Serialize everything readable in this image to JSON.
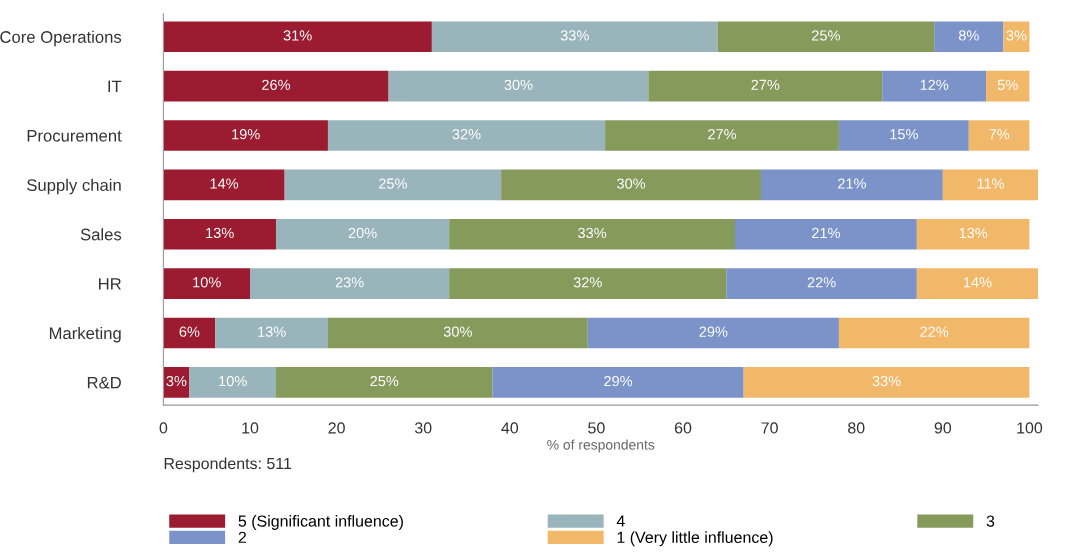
{
  "chart_data": {
    "type": "bar",
    "orientation": "horizontal",
    "stacked": true,
    "categories": [
      "Core Operations",
      "IT",
      "Procurement",
      "Supply chain",
      "Sales",
      "HR",
      "Marketing",
      "R&D"
    ],
    "series": [
      {
        "name": "5 (Significant influence)",
        "color": "#9b1c31",
        "values": [
          31,
          26,
          19,
          14,
          13,
          10,
          6,
          3
        ],
        "value_labels": [
          "31%",
          "26%",
          "19%",
          "14%",
          "13%",
          "10%",
          "6%",
          "3%"
        ]
      },
      {
        "name": "4",
        "color": "#9ab4bc",
        "values": [
          33,
          30,
          32,
          25,
          20,
          23,
          13,
          10
        ],
        "value_labels": [
          "33%",
          "30%",
          "32%",
          "25%",
          "20%",
          "23%",
          "13%",
          "10%"
        ]
      },
      {
        "name": "3",
        "color": "#869a5c",
        "values": [
          25,
          27,
          27,
          30,
          33,
          32,
          30,
          25
        ],
        "value_labels": [
          "25%",
          "27%",
          "27%",
          "30%",
          "33%",
          "32%",
          "30%",
          "25%"
        ]
      },
      {
        "name": "2",
        "color": "#7b93c9",
        "values": [
          8,
          12,
          15,
          21,
          21,
          22,
          29,
          29
        ],
        "value_labels": [
          "8%",
          "12%",
          "15%",
          "21%",
          "21%",
          "22%",
          "29%",
          "29%"
        ]
      },
      {
        "name": "1 (Very little influence)",
        "color": "#f2b86a",
        "values": [
          3,
          5,
          7,
          11,
          13,
          14,
          22,
          33
        ],
        "value_labels": [
          "3%",
          "5%",
          "7%",
          "11%",
          "13%",
          "14%",
          "22%",
          "33%"
        ]
      }
    ],
    "xlabel": "% of respondents",
    "xlim": [
      0,
      101
    ],
    "xticks": [
      0,
      10,
      20,
      30,
      40,
      50,
      60,
      70,
      80,
      90,
      100
    ],
    "annotations": [
      "Respondents: 511"
    ],
    "grid": false,
    "legend": "bottom"
  }
}
